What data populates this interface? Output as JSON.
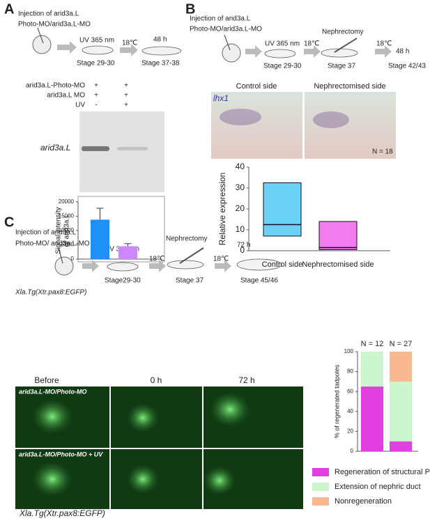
{
  "panels": {
    "a": {
      "label": "A",
      "injection": [
        "Injection of arid3a.L",
        "Photo-MO/arid3a.L-MO"
      ],
      "uv": "UV 365 nm",
      "temp": "18℃",
      "time": "48 h",
      "stages": [
        "Stage 29-30",
        "Stage 37-38"
      ],
      "table": [
        [
          "arid3a.L-Photo-MO",
          "+",
          "+"
        ],
        [
          "arid3a.L MO",
          "+",
          "+"
        ],
        [
          "UV",
          "-",
          "+"
        ]
      ],
      "gel_label": "arid3a.L"
    },
    "b": {
      "label": "B",
      "injection": [
        "Injection of arid3a.L",
        "Photo-MO/arid3a.L-MO"
      ],
      "uv": "UV 365 nm",
      "temp1": "18℃",
      "surgery": "Nephrectomy",
      "temp2": "18℃",
      "time": "48 h",
      "stages": [
        "Stage 29-30",
        "Stage 37",
        "Stage 42/43"
      ],
      "image_titles": [
        "Control side",
        "Nephrectomised  side"
      ],
      "gene": "lhx1",
      "n": "N = 18"
    },
    "c": {
      "label": "C",
      "injection": [
        "Injection of arid3a.L",
        "Photo-MO/ arid3a.L-MO"
      ],
      "line": "Xla.Tg(Xtr.pax8:EGFP)",
      "uv": "UV 365 nm",
      "temp1": "18℃",
      "surgery": "Nephrectomy",
      "temp2": "18℃",
      "time": "72 h",
      "stages": [
        "Stage29-30",
        "Stage 37",
        "Stage 45/46"
      ],
      "columns": [
        "Before",
        "0 h",
        "72 h"
      ],
      "rows": [
        "arid3a.L-MO/Photo-MO",
        "arid3a.L-MO/Photo-MO + UV"
      ],
      "caption": "Xla.Tg(Xtr.pax8:EGFP)"
    }
  },
  "chart_data": [
    {
      "type": "bar",
      "ylabel": [
        "Signal intensity",
        "of arid3a.L"
      ],
      "values": [
        13800,
        4500
      ],
      "errors": [
        4000,
        900
      ],
      "colors": [
        "#1e90ff",
        "#cc88ff"
      ],
      "ylim": [
        0,
        20000
      ],
      "yticks": [
        0,
        5000,
        10000,
        15000,
        20000
      ]
    },
    {
      "type": "box",
      "ylabel": "Relative expression",
      "categories": [
        "Control side",
        "Nephrectomised side"
      ],
      "q1": [
        7,
        0.5
      ],
      "median": [
        12.5,
        1.5
      ],
      "q3": [
        32.5,
        14
      ],
      "colors": [
        "#6dd0f7",
        "#f07cf0"
      ],
      "ylim": [
        0,
        40
      ],
      "yticks": [
        0,
        10,
        20,
        30,
        40
      ]
    },
    {
      "type": "stacked_bar",
      "ylabel": "% of regenerated tadpoles",
      "categories": [
        "N = 12",
        "N = 27"
      ],
      "series": [
        {
          "name": "Regeneration of structural PT",
          "color": "#e040e0",
          "values": [
            65,
            10
          ]
        },
        {
          "name": "Extension of nephric duct",
          "color": "#ccf5cc",
          "values": [
            35,
            60
          ]
        },
        {
          "name": "Nonregeneration",
          "color": "#f8b890",
          "values": [
            0,
            30
          ]
        }
      ],
      "ylim": [
        0,
        100
      ],
      "yticks": [
        0,
        20,
        40,
        60,
        80,
        100
      ]
    }
  ]
}
